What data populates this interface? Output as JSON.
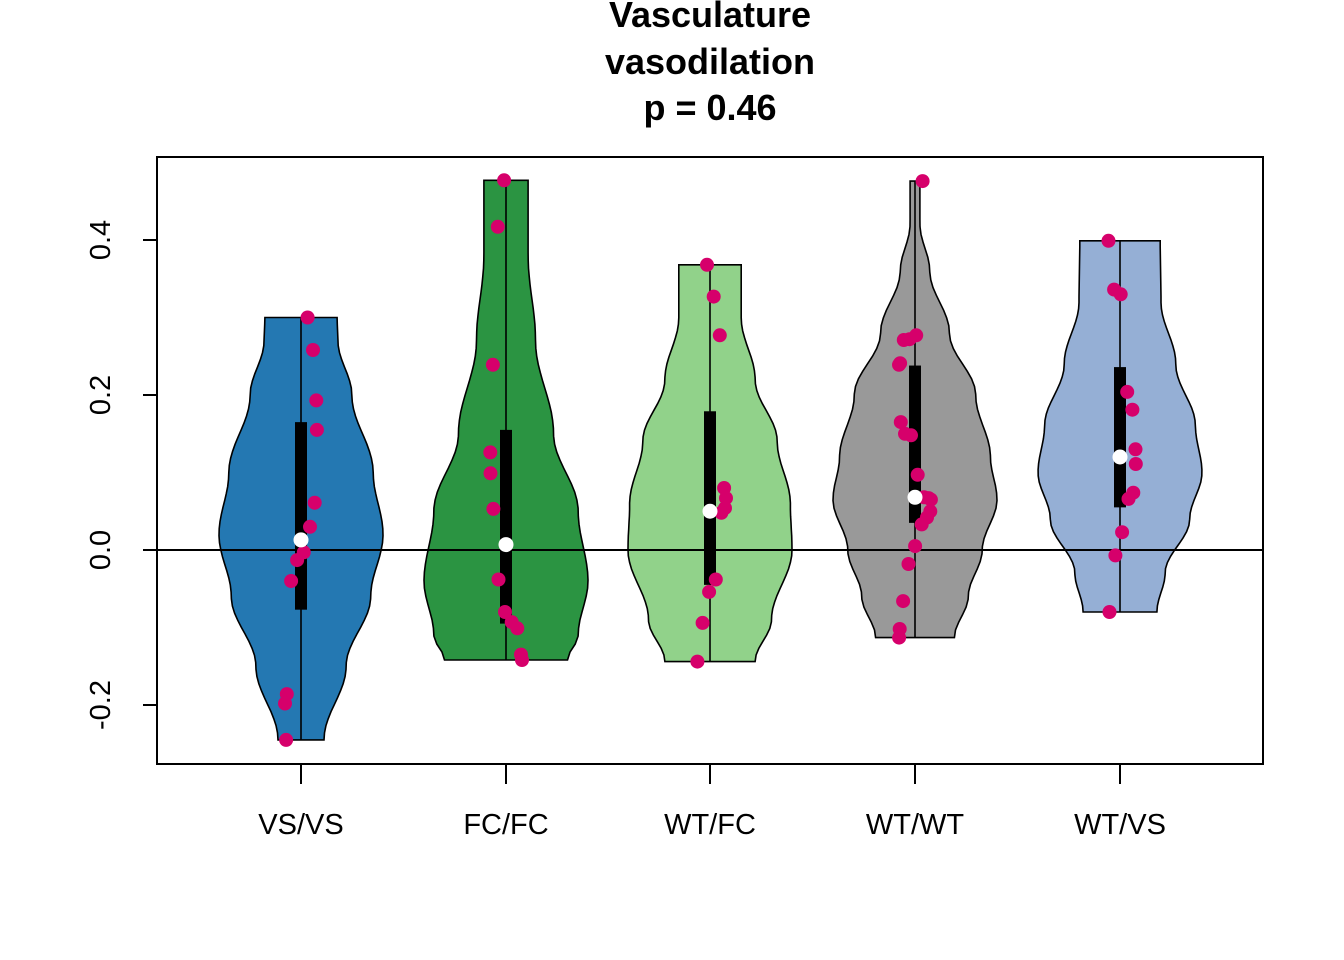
{
  "chart_data": {
    "type": "violin",
    "title": [
      "Vasculature",
      "vasodilation",
      "p = 0.46"
    ],
    "xlabel": "",
    "ylabel": "",
    "ylim": [
      -0.27,
      0.5
    ],
    "y_ticks": [
      -0.2,
      0.0,
      0.2,
      0.4
    ],
    "y_tick_labels": [
      "-0.2",
      "0.0",
      "0.2",
      "0.4"
    ],
    "reference_line": 0.0,
    "point_color": "#d6006b",
    "median_color": "#ffffff",
    "grid": false,
    "legend": "none",
    "groups": [
      {
        "label": "VS/VS",
        "color": "#2478b2",
        "min": -0.245,
        "max": 0.3,
        "q1": -0.077,
        "q3": 0.165,
        "median": 0.013,
        "density": [
          [
            -0.245,
            0.28
          ],
          [
            -0.15,
            0.55
          ],
          [
            -0.06,
            0.85
          ],
          [
            0.02,
            1.0
          ],
          [
            0.1,
            0.88
          ],
          [
            0.2,
            0.62
          ],
          [
            0.27,
            0.45
          ],
          [
            0.3,
            0.44
          ]
        ],
        "points": [
          0.3,
          0.258,
          0.193,
          0.155,
          0.061,
          0.03,
          -0.003,
          -0.013,
          -0.04,
          -0.186,
          -0.198,
          -0.245
        ]
      },
      {
        "label": "FC/FC",
        "color": "#2b9442",
        "min": -0.142,
        "max": 0.477,
        "q1": -0.095,
        "q3": 0.155,
        "median": 0.007,
        "density": [
          [
            -0.142,
            0.75
          ],
          [
            -0.11,
            0.88
          ],
          [
            -0.04,
            1.0
          ],
          [
            0.05,
            0.88
          ],
          [
            0.15,
            0.58
          ],
          [
            0.27,
            0.36
          ],
          [
            0.38,
            0.27
          ],
          [
            0.477,
            0.27
          ]
        ],
        "points": [
          0.477,
          0.417,
          0.239,
          0.126,
          0.099,
          0.053,
          -0.038,
          -0.08,
          -0.093,
          -0.101,
          -0.135,
          -0.142
        ]
      },
      {
        "label": "WT/FC",
        "color": "#91d28a",
        "min": -0.144,
        "max": 0.368,
        "q1": -0.045,
        "q3": 0.179,
        "median": 0.05,
        "density": [
          [
            -0.144,
            0.55
          ],
          [
            -0.09,
            0.75
          ],
          [
            0.0,
            1.0
          ],
          [
            0.06,
            0.98
          ],
          [
            0.14,
            0.82
          ],
          [
            0.22,
            0.55
          ],
          [
            0.3,
            0.38
          ],
          [
            0.368,
            0.38
          ]
        ],
        "points": [
          0.368,
          0.327,
          0.277,
          0.08,
          0.067,
          0.054,
          0.048,
          -0.038,
          -0.054,
          -0.094,
          -0.144
        ]
      },
      {
        "label": "WT/WT",
        "color": "#999999",
        "min": -0.113,
        "max": 0.476,
        "q1": 0.035,
        "q3": 0.238,
        "median": 0.068,
        "density": [
          [
            -0.113,
            0.48
          ],
          [
            -0.06,
            0.65
          ],
          [
            0.0,
            0.82
          ],
          [
            0.065,
            1.0
          ],
          [
            0.12,
            0.92
          ],
          [
            0.2,
            0.74
          ],
          [
            0.28,
            0.42
          ],
          [
            0.36,
            0.18
          ],
          [
            0.42,
            0.06
          ],
          [
            0.476,
            0.06
          ]
        ],
        "points": [
          0.476,
          0.277,
          0.272,
          0.271,
          0.241,
          0.239,
          0.165,
          0.15,
          0.148,
          0.097,
          0.068,
          0.067,
          0.065,
          0.05,
          0.042,
          0.033,
          0.005,
          -0.018,
          -0.066,
          -0.102,
          -0.113
        ]
      },
      {
        "label": "WT/VS",
        "color": "#95afd5",
        "min": -0.08,
        "max": 0.399,
        "q1": 0.055,
        "q3": 0.236,
        "median": 0.12,
        "density": [
          [
            -0.08,
            0.45
          ],
          [
            -0.03,
            0.55
          ],
          [
            0.04,
            0.85
          ],
          [
            0.1,
            1.0
          ],
          [
            0.16,
            0.92
          ],
          [
            0.24,
            0.68
          ],
          [
            0.32,
            0.5
          ],
          [
            0.399,
            0.49
          ]
        ],
        "points": [
          0.399,
          0.336,
          0.33,
          0.204,
          0.181,
          0.13,
          0.111,
          0.074,
          0.066,
          0.023,
          -0.007,
          -0.08
        ]
      }
    ]
  }
}
